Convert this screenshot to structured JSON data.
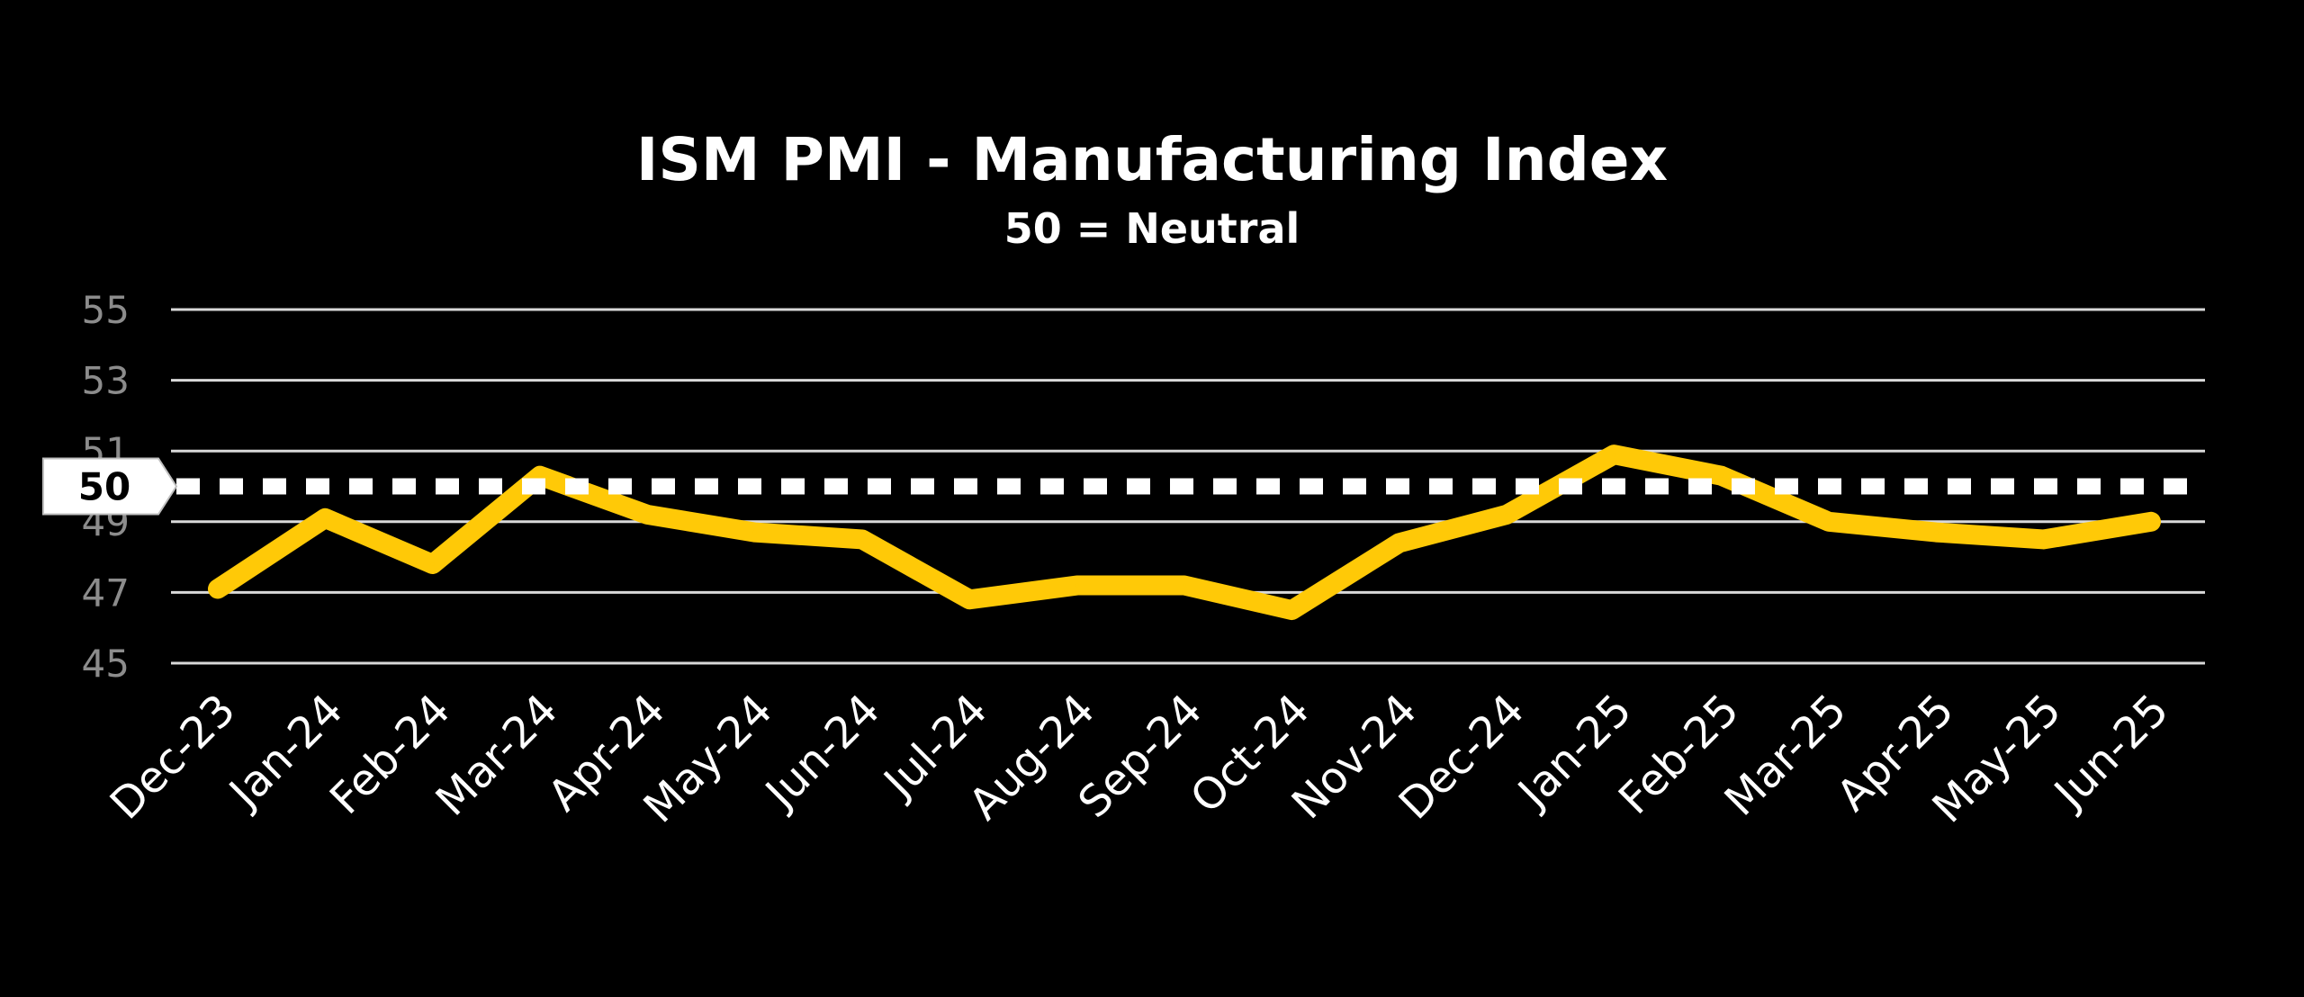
{
  "chart_data": {
    "type": "line",
    "title": "ISM PMI - Manufacturing Index",
    "subtitle": "50 = Neutral",
    "categories": [
      "Dec-23",
      "Jan-24",
      "Feb-24",
      "Mar-24",
      "Apr-24",
      "May-24",
      "Jun-24",
      "Jul-24",
      "Aug-24",
      "Sep-24",
      "Oct-24",
      "Nov-24",
      "Dec-24",
      "Jan-25",
      "Feb-25",
      "Mar-25",
      "Apr-25",
      "May-25",
      "Jun-25"
    ],
    "series": [
      {
        "values": [
          47.1,
          49.1,
          47.8,
          50.3,
          49.2,
          48.7,
          48.5,
          46.8,
          47.2,
          47.2,
          46.5,
          48.4,
          49.2,
          50.9,
          50.3,
          49.0,
          48.7,
          48.5,
          49.0
        ]
      }
    ],
    "ylim": [
      45,
      55
    ],
    "yticks": [
      45,
      47,
      49,
      51,
      53,
      55
    ],
    "xlabel": "",
    "ylabel": "",
    "grid": true,
    "reference_line": {
      "value": 50,
      "label": "50"
    },
    "colors": {
      "background": "#000000",
      "line": "#FFC907",
      "grid": "#d9d9d9",
      "reference": "#ffffff",
      "ytick": "#8c8c8c",
      "xtick": "#ffffff"
    }
  }
}
